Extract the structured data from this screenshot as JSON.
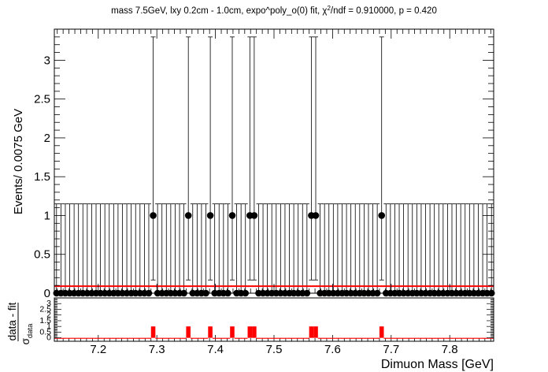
{
  "chart_data": {
    "type": "scatter",
    "title": "mass 7.5GeV, lxy 0.2cm - 1.0cm, expo^poly_o(0) fit, χ²/ndf = 0.910000, p = 0.420",
    "title_parts": {
      "left": "mass 7.5GeV, lxy 0.2cm - 1.0cm, expo^poly_o(0) fit, χ",
      "sup": "2",
      "right": "/ndf = 0.910000, p = 0.420"
    },
    "xlabel": "Dimuon Mass [GeV]",
    "ylabel": "Events/ 0.0075 GeV",
    "xlim": [
      7.125,
      7.875
    ],
    "ylim": [
      0,
      3.4
    ],
    "bin_width": 0.0075,
    "x_ticks": [
      "7.2",
      "7.3",
      "7.4",
      "7.5",
      "7.6",
      "7.7",
      "7.8"
    ],
    "y_ticks": [
      "0",
      "0.5",
      "1",
      "1.5",
      "2",
      "2.5",
      "3"
    ],
    "empty_bin_error_up": 1.15,
    "event_bin_error": {
      "low": 0.17,
      "high": 3.3
    },
    "event_bins": [
      7.2938,
      7.3538,
      7.3913,
      7.4288,
      7.4588,
      7.4663,
      7.5638,
      7.5713,
      7.6838
    ],
    "fit_level": 0.09,
    "fit_color": "#ff0000",
    "marker_color": "#000000",
    "pull": {
      "ylabel_num": "data - fit",
      "ylabel_den": "σ",
      "ylabel_den_sub": "data",
      "y_ticks": [
        "0",
        "0.5",
        "1",
        "1.5",
        "2",
        "2.5",
        "3"
      ],
      "ylim": [
        -0.3,
        3.5
      ],
      "event_pull": 1.0,
      "empty_pull": -0.08,
      "bar_color": "#ff0000"
    }
  }
}
